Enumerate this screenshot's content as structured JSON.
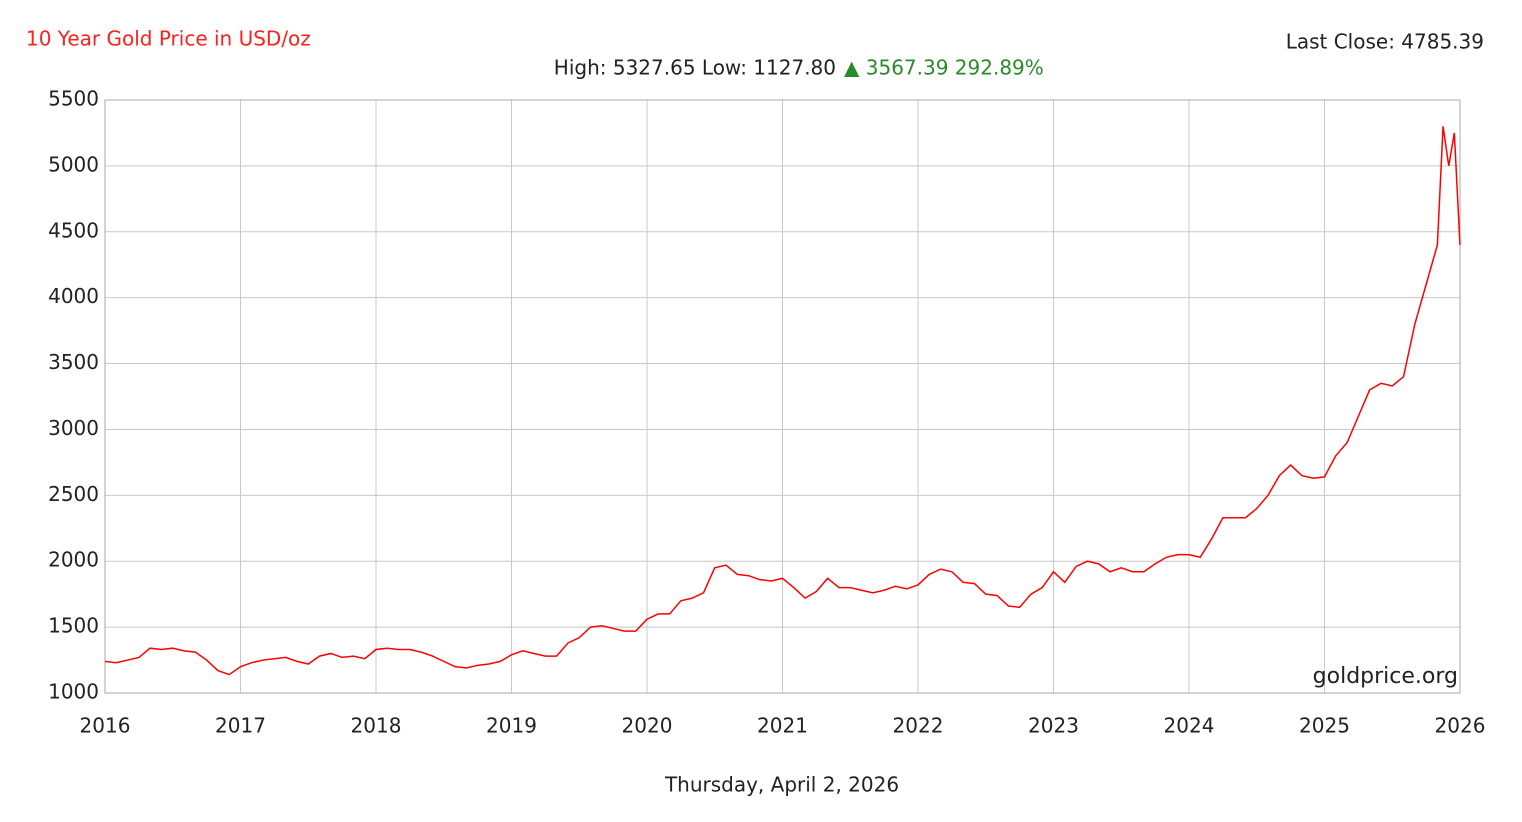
{
  "chart_data": {
    "type": "line",
    "title": "10 Year Gold Price in USD/oz",
    "subtitle": "High: 5327.65 Low: 1127.80",
    "change": "▲ 3567.39 292.89%",
    "last_close": "Last Close: 4785.39",
    "watermark": "goldprice.org",
    "date": "Thursday, April 2, 2026",
    "xlim": [
      2016,
      2026
    ],
    "xticks": [
      2016,
      2017,
      2018,
      2019,
      2020,
      2021,
      2022,
      2023,
      2024,
      2025,
      2026
    ],
    "ylim": [
      1000,
      5500
    ],
    "yticks": [
      1000,
      1500,
      2000,
      2500,
      3000,
      3500,
      4000,
      4500,
      5000,
      5500
    ],
    "grid": true,
    "series": [
      {
        "name": "Gold",
        "color": "#ff0000",
        "x": [
          2016,
          2016.083,
          2016.167,
          2016.25,
          2016.333,
          2016.417,
          2016.5,
          2016.583,
          2016.667,
          2016.75,
          2016.833,
          2016.917,
          2017,
          2017.083,
          2017.167,
          2017.25,
          2017.333,
          2017.417,
          2017.5,
          2017.583,
          2017.667,
          2017.75,
          2017.833,
          2017.917,
          2018,
          2018.083,
          2018.167,
          2018.25,
          2018.333,
          2018.417,
          2018.5,
          2018.583,
          2018.667,
          2018.75,
          2018.833,
          2018.917,
          2019,
          2019.083,
          2019.167,
          2019.25,
          2019.333,
          2019.417,
          2019.5,
          2019.583,
          2019.667,
          2019.75,
          2019.833,
          2019.917,
          2020,
          2020.083,
          2020.167,
          2020.25,
          2020.333,
          2020.417,
          2020.5,
          2020.583,
          2020.667,
          2020.75,
          2020.833,
          2020.917,
          2021,
          2021.083,
          2021.167,
          2021.25,
          2021.333,
          2021.417,
          2021.5,
          2021.583,
          2021.667,
          2021.75,
          2021.833,
          2021.917,
          2022,
          2022.083,
          2022.167,
          2022.25,
          2022.333,
          2022.417,
          2022.5,
          2022.583,
          2022.667,
          2022.75,
          2022.833,
          2022.917,
          2023,
          2023.083,
          2023.167,
          2023.25,
          2023.333,
          2023.417,
          2023.5,
          2023.583,
          2023.667,
          2023.75,
          2023.833,
          2023.917,
          2024,
          2024.083,
          2024.167,
          2024.25,
          2024.333,
          2024.417,
          2024.5,
          2024.583,
          2024.667,
          2024.75,
          2024.833,
          2024.917,
          2025,
          2025.083,
          2025.167,
          2025.25,
          2025.333,
          2025.417,
          2025.5,
          2025.583,
          2025.667,
          2025.75,
          2025.833,
          2025.875,
          2025.917,
          2025.958,
          2026
        ],
        "values": [
          1240,
          1230,
          1250,
          1270,
          1340,
          1330,
          1340,
          1320,
          1310,
          1250,
          1170,
          1140,
          1200,
          1230,
          1250,
          1260,
          1270,
          1240,
          1220,
          1280,
          1300,
          1270,
          1280,
          1260,
          1330,
          1340,
          1330,
          1330,
          1310,
          1280,
          1240,
          1200,
          1190,
          1210,
          1220,
          1240,
          1290,
          1320,
          1300,
          1280,
          1280,
          1380,
          1420,
          1500,
          1510,
          1490,
          1470,
          1470,
          1560,
          1600,
          1600,
          1700,
          1720,
          1760,
          1950,
          1970,
          1900,
          1890,
          1860,
          1850,
          1870,
          1800,
          1720,
          1770,
          1870,
          1800,
          1800,
          1780,
          1760,
          1780,
          1810,
          1790,
          1820,
          1900,
          1940,
          1920,
          1840,
          1830,
          1750,
          1740,
          1660,
          1650,
          1750,
          1800,
          1920,
          1840,
          1960,
          2000,
          1980,
          1920,
          1950,
          1920,
          1920,
          1980,
          2030,
          2050,
          2050,
          2030,
          2170,
          2330,
          2330,
          2330,
          2400,
          2500,
          2650,
          2730,
          2650,
          2630,
          2640,
          2800,
          2900,
          3100,
          3300,
          3350,
          3330,
          3400,
          3800,
          4100,
          4400,
          5300,
          5000,
          5250,
          4400
        ]
      }
    ]
  }
}
